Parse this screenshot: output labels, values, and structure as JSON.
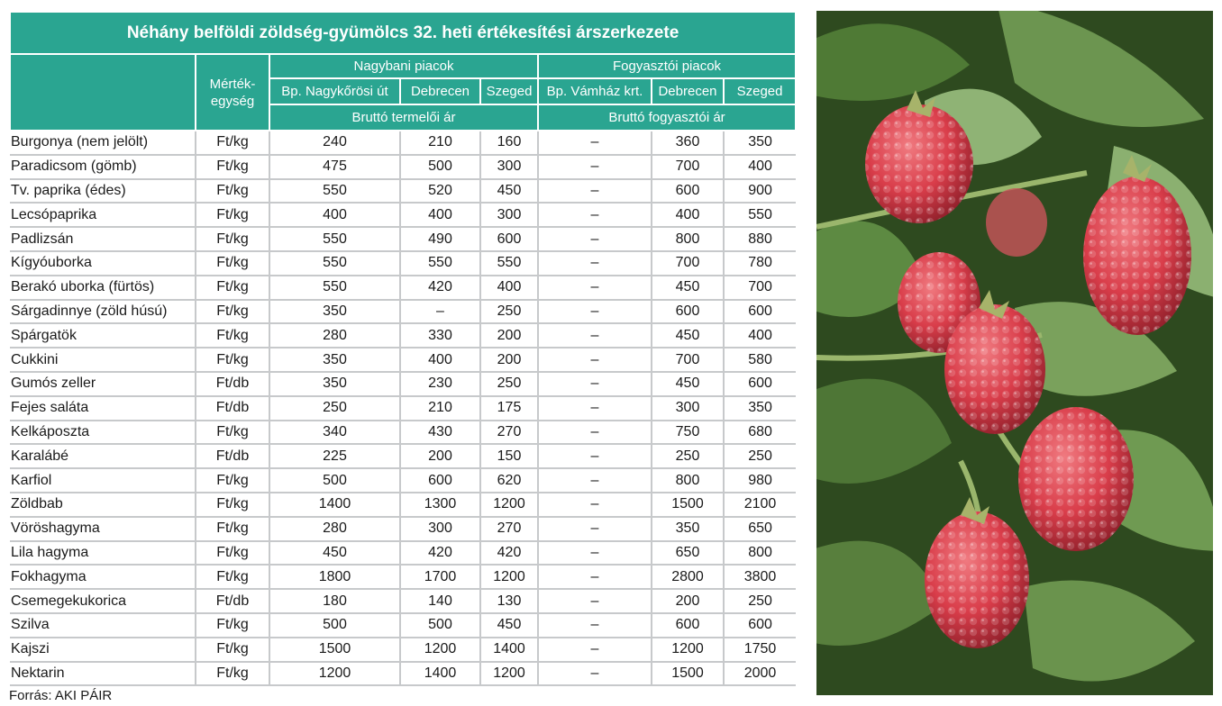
{
  "table": {
    "title": "Néhány belföldi zöldség-gyümölcs 32. heti értékesítési árszerkezete",
    "unit_header": [
      "Mérték-",
      "egység"
    ],
    "group_wholesale": "Nagybani piacok",
    "group_consumer": "Fogyasztói piacok",
    "markets": [
      "Bp. Nagykőrösi út",
      "Debrecen",
      "Szeged",
      "Bp. Vámház krt.",
      "Debrecen",
      "Szeged"
    ],
    "price_wholesale": "Bruttó termelői ár",
    "price_consumer": "Bruttó fogyasztói ár",
    "rows": [
      [
        "Burgonya (nem jelölt)",
        "Ft/kg",
        "240",
        "210",
        "160",
        "–",
        "360",
        "350"
      ],
      [
        "Paradicsom (gömb)",
        "Ft/kg",
        "475",
        "500",
        "300",
        "–",
        "700",
        "400"
      ],
      [
        "Tv. paprika (édes)",
        "Ft/kg",
        "550",
        "520",
        "450",
        "–",
        "600",
        "900"
      ],
      [
        "Lecsópaprika",
        "Ft/kg",
        "400",
        "400",
        "300",
        "–",
        "400",
        "550"
      ],
      [
        "Padlizsán",
        "Ft/kg",
        "550",
        "490",
        "600",
        "–",
        "800",
        "880"
      ],
      [
        "Kígyóuborka",
        "Ft/kg",
        "550",
        "550",
        "550",
        "–",
        "700",
        "780"
      ],
      [
        "Berakó uborka (fürtös)",
        "Ft/kg",
        "550",
        "420",
        "400",
        "–",
        "450",
        "700"
      ],
      [
        "Sárgadinnye (zöld húsú)",
        "Ft/kg",
        "350",
        "–",
        "250",
        "–",
        "600",
        "600"
      ],
      [
        "Spárgatök",
        "Ft/kg",
        "280",
        "330",
        "200",
        "–",
        "450",
        "400"
      ],
      [
        "Cukkini",
        "Ft/kg",
        "350",
        "400",
        "200",
        "–",
        "700",
        "580"
      ],
      [
        "Gumós zeller",
        "Ft/db",
        "350",
        "230",
        "250",
        "–",
        "450",
        "600"
      ],
      [
        "Fejes saláta",
        "Ft/db",
        "250",
        "210",
        "175",
        "–",
        "300",
        "350"
      ],
      [
        "Kelkáposzta",
        "Ft/kg",
        "340",
        "430",
        "270",
        "–",
        "750",
        "680"
      ],
      [
        "Karalábé",
        "Ft/db",
        "225",
        "200",
        "150",
        "–",
        "250",
        "250"
      ],
      [
        "Karfiol",
        "Ft/kg",
        "500",
        "600",
        "620",
        "–",
        "800",
        "980"
      ],
      [
        "Zöldbab",
        "Ft/kg",
        "1400",
        "1300",
        "1200",
        "–",
        "1500",
        "2100"
      ],
      [
        "Vöröshagyma",
        "Ft/kg",
        "280",
        "300",
        "270",
        "–",
        "350",
        "650"
      ],
      [
        "Lila hagyma",
        "Ft/kg",
        "450",
        "420",
        "420",
        "–",
        "650",
        "800"
      ],
      [
        "Fokhagyma",
        "Ft/kg",
        "1800",
        "1700",
        "1200",
        "–",
        "2800",
        "3800"
      ],
      [
        "Csemegekukorica",
        "Ft/db",
        "180",
        "140",
        "130",
        "–",
        "200",
        "250"
      ],
      [
        "Szilva",
        "Ft/kg",
        "500",
        "500",
        "450",
        "–",
        "600",
        "600"
      ],
      [
        "Kajszi",
        "Ft/kg",
        "1500",
        "1200",
        "1400",
        "–",
        "1200",
        "1750"
      ],
      [
        "Nektarin",
        "Ft/kg",
        "1200",
        "1400",
        "1200",
        "–",
        "1500",
        "2000"
      ]
    ]
  },
  "source": "Forrás: AKI PÁIR",
  "colors": {
    "header_bg": "#2aa591",
    "header_text": "#ffffff",
    "row_rule": "#c7c9cb"
  },
  "photo": {
    "subject": "raspberry-bush-photo"
  }
}
